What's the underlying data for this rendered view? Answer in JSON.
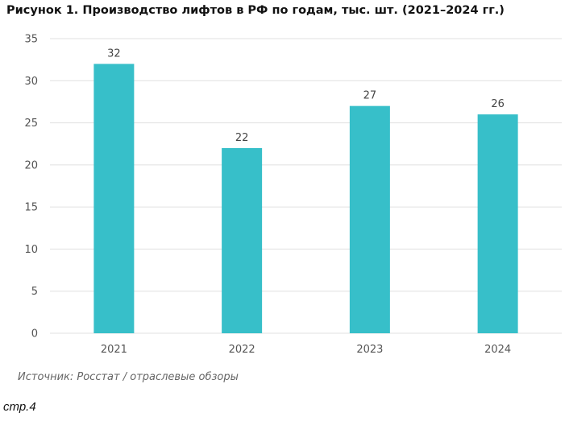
{
  "chart_data": {
    "type": "bar",
    "title": "Рисунок 1. Производство лифтов в РФ по годам, тыс. шт. (2021–2024 гг.)",
    "categories": [
      "2021",
      "2022",
      "2023",
      "2024"
    ],
    "values": [
      32,
      22,
      27,
      26
    ],
    "data_labels": [
      "32",
      "22",
      "27",
      "26"
    ],
    "y_ticks": [
      0,
      5,
      10,
      15,
      20,
      25,
      30,
      35
    ],
    "ylim": [
      0,
      35
    ],
    "grid": true,
    "legend": "none",
    "bar_color": "#37BFC9",
    "grid_color": "#E0E0E0"
  },
  "source": "Источник: Росстат / отраслевые обзоры",
  "page_number": "стр.4"
}
